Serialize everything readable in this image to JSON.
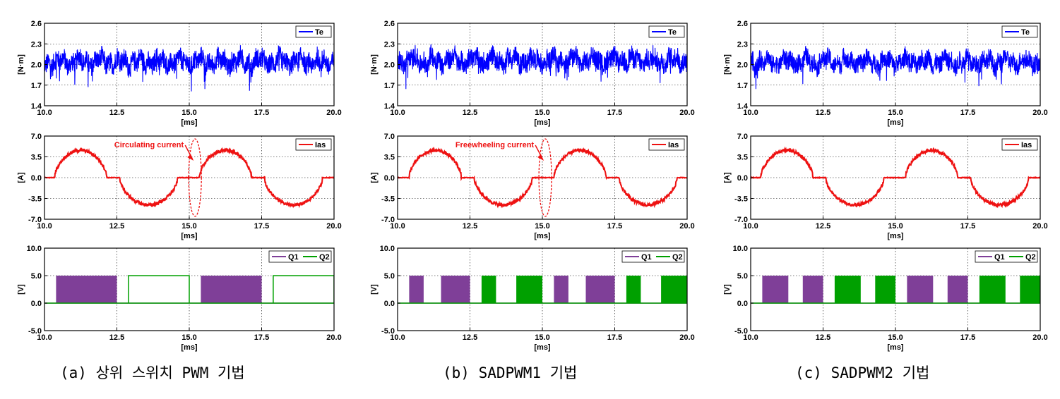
{
  "chart_data": [
    {
      "id": "a",
      "caption": "(a) 상위 스위치 PWM 기법",
      "caption_x": 85,
      "panels": [
        {
          "type": "line",
          "ylabel": "[N·m]",
          "xlabel": "[ms]",
          "ylim": [
            1.4,
            2.6
          ],
          "yticks": [
            "1.4",
            "1.7",
            "2.0",
            "2.3",
            "2.6"
          ],
          "xticks": [
            "10.0",
            "12.5",
            "15.0",
            "17.5",
            "20.0"
          ],
          "xlim": [
            10,
            20
          ],
          "series": [
            {
              "name": "Te",
              "color": "#0000ff",
              "kind": "torque",
              "mean": 2.04,
              "ripple": 0.16
            }
          ]
        },
        {
          "type": "line",
          "ylabel": "[A]",
          "xlabel": "[ms]",
          "ylim": [
            -7,
            7
          ],
          "yticks": [
            "-7.0",
            "-3.5",
            "0.0",
            "3.5",
            "7.0"
          ],
          "xticks": [
            "10.0",
            "12.5",
            "15.0",
            "17.5",
            "20.0"
          ],
          "xlim": [
            10,
            20
          ],
          "series": [
            {
              "name": "Ias",
              "color": "#ee1111",
              "kind": "current",
              "amplitude": 4.6
            }
          ],
          "annotation": {
            "text": "Circulating current",
            "x": 15.2,
            "y": 0
          }
        },
        {
          "type": "area",
          "ylabel": "[V]",
          "xlabel": "[ms]",
          "ylim": [
            -5,
            10
          ],
          "yticks": [
            "-5.0",
            "0.0",
            "5.0",
            "10.0"
          ],
          "xticks": [
            "10.0",
            "12.5",
            "15.0",
            "17.5",
            "20.0"
          ],
          "xlim": [
            10,
            20
          ],
          "series": [
            {
              "name": "Q1",
              "color": "#7f3f98",
              "kind": "dense",
              "level": 5,
              "intervals": [
                [
                  10.4,
                  12.5
                ],
                [
                  15.4,
                  17.5
                ]
              ]
            },
            {
              "name": "Q2",
              "color": "#00a000",
              "kind": "solid",
              "level": 5,
              "intervals": [
                [
                  12.9,
                  15.0
                ],
                [
                  17.9,
                  20.0
                ]
              ]
            }
          ]
        }
      ]
    },
    {
      "id": "b",
      "caption": "(b) SADPWM1 기법",
      "caption_x": 627,
      "panels": [
        {
          "type": "line",
          "ylabel": "[N·m]",
          "xlabel": "[ms]",
          "ylim": [
            1.4,
            2.6
          ],
          "yticks": [
            "1.4",
            "1.7",
            "2.0",
            "2.3",
            "2.6"
          ],
          "xticks": [
            "10.0",
            "12.5",
            "15.0",
            "17.5",
            "20.0"
          ],
          "xlim": [
            10,
            20
          ],
          "series": [
            {
              "name": "Te",
              "color": "#0000ff",
              "kind": "torque",
              "mean": 2.06,
              "ripple": 0.16
            }
          ]
        },
        {
          "type": "line",
          "ylabel": "[A]",
          "xlabel": "[ms]",
          "ylim": [
            -7,
            7
          ],
          "yticks": [
            "-7.0",
            "-3.5",
            "0.0",
            "3.5",
            "7.0"
          ],
          "xticks": [
            "10.0",
            "12.5",
            "15.0",
            "17.5",
            "20.0"
          ],
          "xlim": [
            10,
            20
          ],
          "series": [
            {
              "name": "Ias",
              "color": "#ee1111",
              "kind": "current",
              "amplitude": 4.6
            }
          ],
          "annotation": {
            "text": "Freewheeling current",
            "x": 15.1,
            "y": 0
          }
        },
        {
          "type": "area",
          "ylabel": "[V]",
          "xlabel": "[ms]",
          "ylim": [
            -5,
            10
          ],
          "yticks": [
            "-5.0",
            "0.0",
            "5.0",
            "10.0"
          ],
          "xticks": [
            "10.0",
            "12.5",
            "15.0",
            "17.5",
            "20.0"
          ],
          "xlim": [
            10,
            20
          ],
          "series": [
            {
              "name": "Q1",
              "color": "#7f3f98",
              "kind": "dense",
              "level": 5,
              "intervals": [
                [
                  10.4,
                  10.9
                ],
                [
                  11.5,
                  12.5
                ],
                [
                  15.4,
                  15.9
                ],
                [
                  16.5,
                  17.5
                ]
              ]
            },
            {
              "name": "Q2",
              "color": "#00a000",
              "kind": "dense",
              "level": 5,
              "intervals": [
                [
                  12.9,
                  13.4
                ],
                [
                  14.1,
                  15.0
                ],
                [
                  17.9,
                  18.4
                ],
                [
                  19.1,
                  20.0
                ]
              ]
            }
          ]
        }
      ]
    },
    {
      "id": "c",
      "caption": "(c) SADPWM2 기법",
      "caption_x": 1126,
      "panels": [
        {
          "type": "line",
          "ylabel": "[N·m]",
          "xlabel": "[ms]",
          "ylim": [
            1.4,
            2.6
          ],
          "yticks": [
            "1.4",
            "1.7",
            "2.0",
            "2.3",
            "2.6"
          ],
          "xticks": [
            "10.0",
            "12.5",
            "15.0",
            "17.5",
            "20.0"
          ],
          "xlim": [
            10,
            20
          ],
          "series": [
            {
              "name": "Te",
              "color": "#0000ff",
              "kind": "torque",
              "mean": 2.04,
              "ripple": 0.15
            }
          ]
        },
        {
          "type": "line",
          "ylabel": "[A]",
          "xlabel": "[ms]",
          "ylim": [
            -7,
            7
          ],
          "yticks": [
            "-7.0",
            "-3.5",
            "0.0",
            "3.5",
            "7.0"
          ],
          "xticks": [
            "10.0",
            "12.5",
            "15.0",
            "17.5",
            "20.0"
          ],
          "xlim": [
            10,
            20
          ],
          "series": [
            {
              "name": "Ias",
              "color": "#ee1111",
              "kind": "current",
              "amplitude": 4.6
            }
          ]
        },
        {
          "type": "area",
          "ylabel": "[V]",
          "xlabel": "[ms]",
          "ylim": [
            -5,
            10
          ],
          "yticks": [
            "-5.0",
            "0.0",
            "5.0",
            "10.0"
          ],
          "xticks": [
            "10.0",
            "12.5",
            "15.0",
            "17.5",
            "20.0"
          ],
          "xlim": [
            10,
            20
          ],
          "series": [
            {
              "name": "Q1",
              "color": "#7f3f98",
              "kind": "dense",
              "level": 5,
              "intervals": [
                [
                  10.4,
                  11.3
                ],
                [
                  11.8,
                  12.5
                ],
                [
                  15.4,
                  16.3
                ],
                [
                  16.8,
                  17.5
                ]
              ]
            },
            {
              "name": "Q2",
              "color": "#00a000",
              "kind": "dense",
              "level": 5,
              "intervals": [
                [
                  12.9,
                  13.8
                ],
                [
                  14.3,
                  15.0
                ],
                [
                  17.9,
                  18.8
                ],
                [
                  19.3,
                  20.0
                ]
              ]
            }
          ]
        }
      ]
    }
  ]
}
